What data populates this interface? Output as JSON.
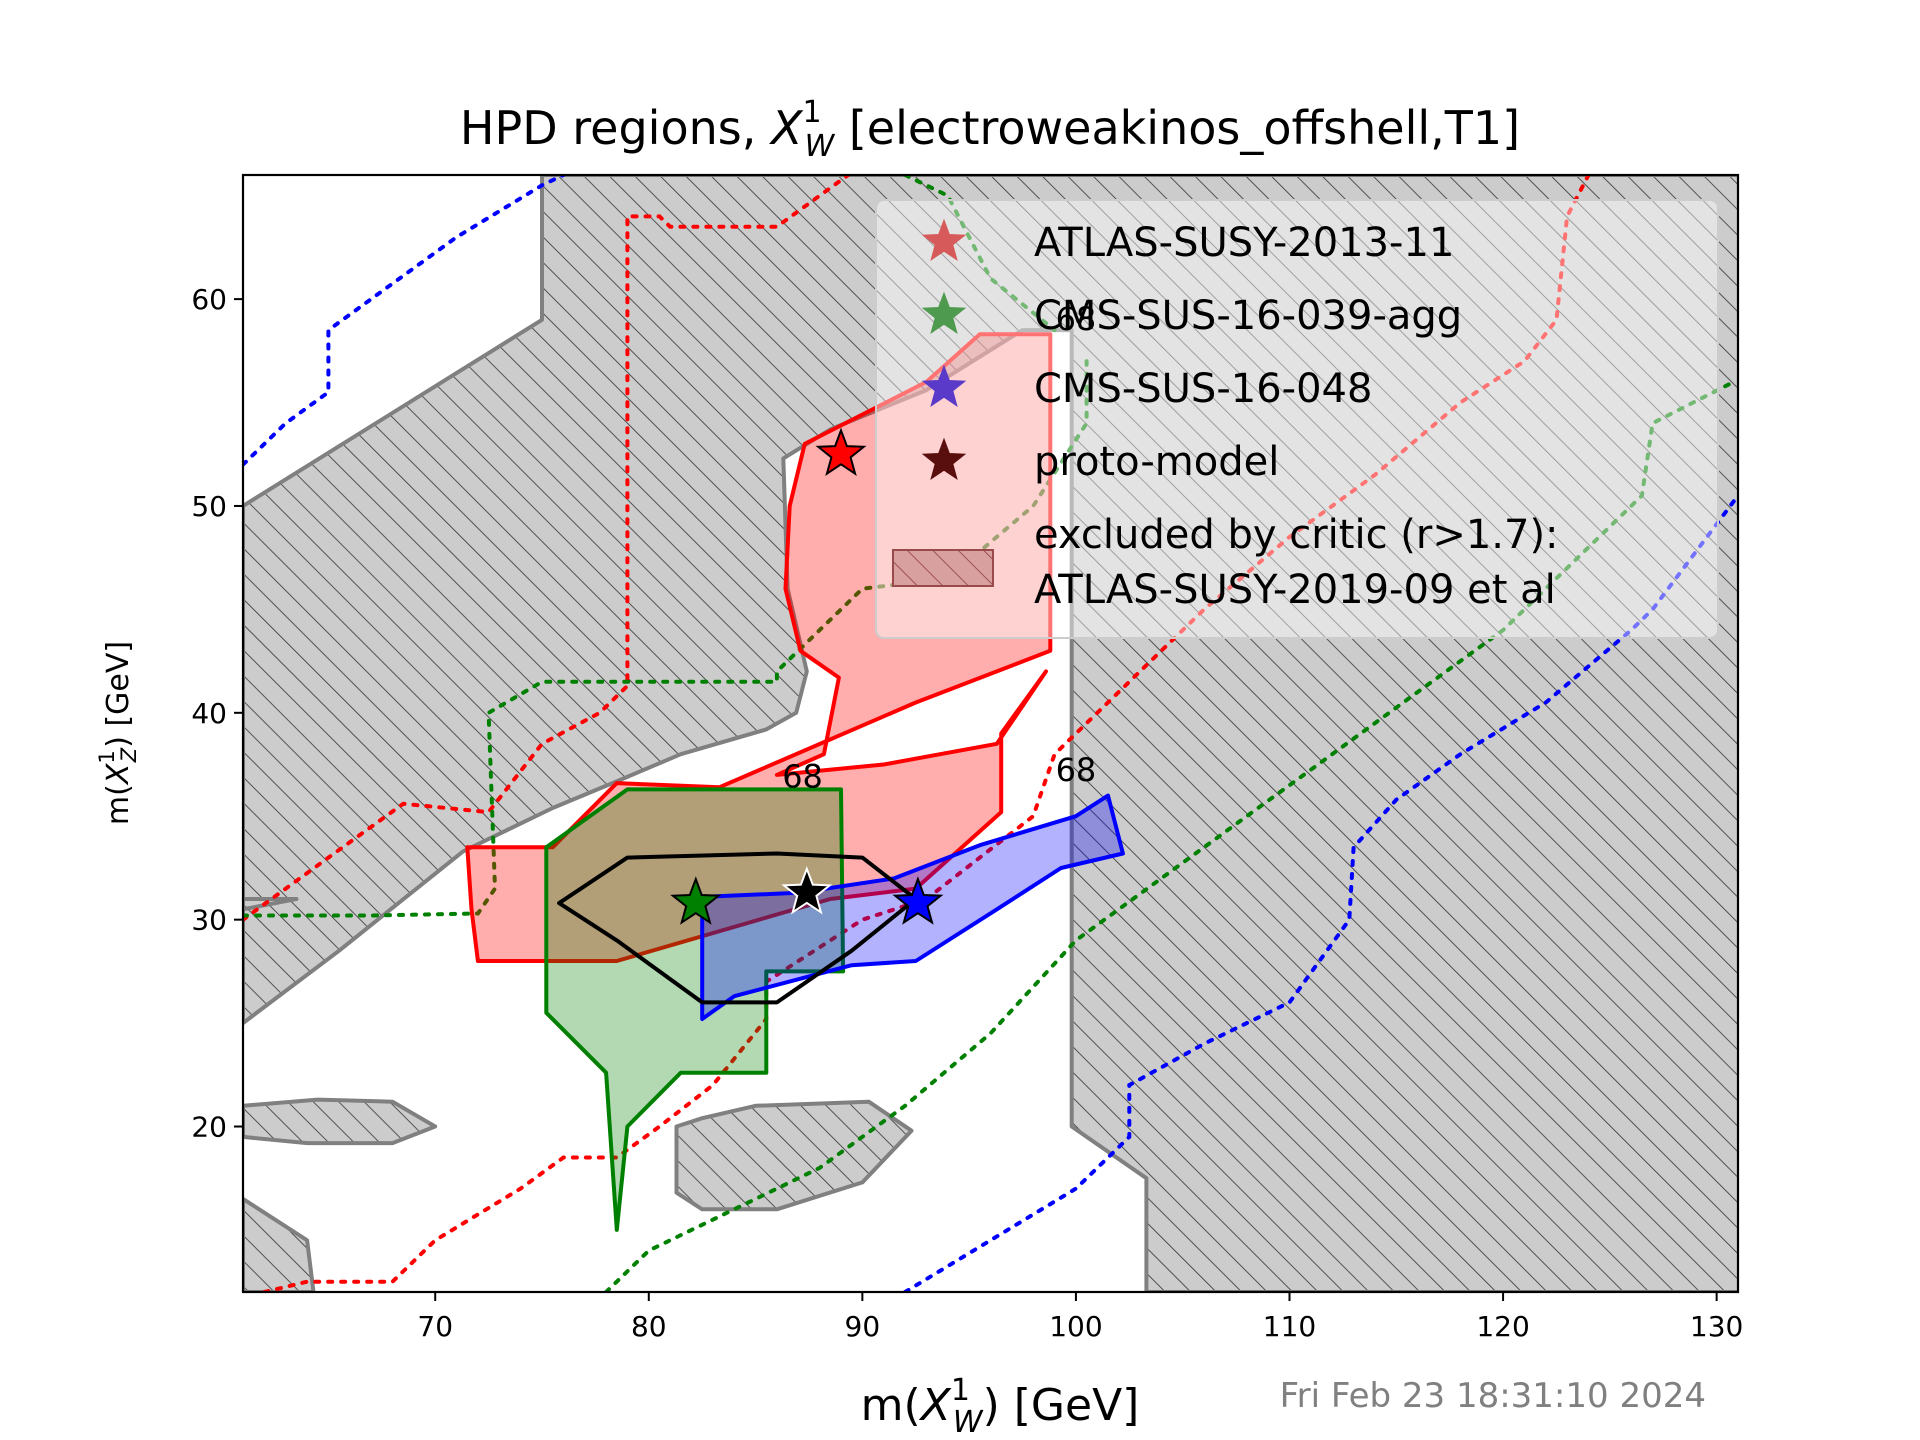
{
  "chart_data": {
    "type": "contour",
    "title_prefix": "HPD regions, ",
    "title_sym": "X",
    "title_sup": "1",
    "title_sub": "W",
    "title_suffix": " [electroweakinos_offshell,T1]",
    "xlabel_prefix": "m(",
    "xlabel_sym": "X",
    "xlabel_sup": "1",
    "xlabel_sub": "W",
    "xlabel_suffix": ") [GeV]",
    "ylabel_prefix": "m(",
    "ylabel_sym": "X",
    "ylabel_sup": "1",
    "ylabel_sub": "Z",
    "ylabel_suffix": ") [GeV]",
    "xlim": [
      61,
      131
    ],
    "ylim": [
      12,
      66
    ],
    "xticks": [
      70,
      80,
      90,
      100,
      110,
      120,
      130
    ],
    "yticks": [
      20,
      30,
      40,
      50,
      60
    ],
    "legend_position": "upper right",
    "legend": [
      {
        "label": "ATLAS-SUSY-2013-11",
        "color": "#ff0000",
        "marker": "star"
      },
      {
        "label": "CMS-SUS-16-039-agg",
        "color": "#008000",
        "marker": "star"
      },
      {
        "label": "CMS-SUS-16-048",
        "color": "#0000ff",
        "marker": "star"
      },
      {
        "label": "proto-model",
        "color": "#000000",
        "marker": "star"
      },
      {
        "label": "excluded by critic (r>1.7):",
        "label2": "ATLAS-SUSY-2019-09 et al",
        "color": "#bbbbbb",
        "marker": "hatch"
      }
    ],
    "contour_labels": [
      {
        "text": "68",
        "color": "#008000",
        "x": 87.2,
        "y": 36.4
      },
      {
        "text": "68",
        "color": "#0000ff",
        "x": 100.0,
        "y": 36.7
      },
      {
        "text": "68",
        "color": "#ff0000",
        "x": 100.0,
        "y": 58.5
      }
    ],
    "best_fit": [
      {
        "series": "ATLAS-SUSY-2013-11",
        "color": "#ff0000",
        "x": 89.0,
        "y": 52.5
      },
      {
        "series": "CMS-SUS-16-039-agg",
        "color": "#008000",
        "x": 82.2,
        "y": 30.8
      },
      {
        "series": "CMS-SUS-16-048",
        "color": "#0000ff",
        "x": 92.6,
        "y": 30.8
      },
      {
        "series": "proto-model",
        "color": "#000000",
        "x": 87.4,
        "y": 31.3
      }
    ],
    "excluded_regions": [
      [
        [
          61,
          50
        ],
        [
          75,
          59
        ],
        [
          75,
          62.5
        ],
        [
          75,
          66
        ],
        [
          133,
          66
        ],
        [
          133,
          12
        ],
        [
          103.3,
          12
        ],
        [
          103.3,
          17.5
        ],
        [
          99.8,
          20
        ],
        [
          99.8,
          58.5
        ],
        [
          97.5,
          58.5
        ],
        [
          93,
          55.6
        ],
        [
          88.5,
          53.7
        ],
        [
          86.3,
          52.3
        ],
        [
          86.5,
          46
        ],
        [
          87.4,
          42
        ],
        [
          86.9,
          40
        ],
        [
          85.5,
          39.2
        ],
        [
          81.5,
          38
        ],
        [
          78.3,
          36.6
        ],
        [
          75.5,
          35.4
        ],
        [
          71.3,
          33.3
        ],
        [
          65.5,
          28.5
        ],
        [
          61,
          25
        ]
      ],
      [
        [
          61,
          30.5
        ],
        [
          63.5,
          31
        ],
        [
          61,
          31
        ]
      ],
      [
        [
          61,
          19.5
        ],
        [
          61,
          21
        ],
        [
          64.5,
          21.3
        ],
        [
          68,
          21.2
        ],
        [
          70,
          20
        ],
        [
          68,
          19.2
        ],
        [
          64,
          19.2
        ]
      ],
      [
        [
          81.3,
          20
        ],
        [
          81.3,
          16.8
        ],
        [
          82.5,
          16
        ],
        [
          86,
          16
        ],
        [
          90,
          17.3
        ],
        [
          92.3,
          19.8
        ],
        [
          90.3,
          21.2
        ],
        [
          85,
          21
        ],
        [
          82.5,
          20.4
        ]
      ],
      [
        [
          61,
          16.5
        ],
        [
          64,
          14.5
        ],
        [
          64.3,
          12
        ],
        [
          61,
          12
        ]
      ]
    ],
    "hpd_regions": [
      {
        "name": "ATLAS-SUSY-2013-11",
        "color": "#ff0000",
        "fill": "rgba(255,0,0,0.32)",
        "polygon": [
          [
            71.5,
            33.5
          ],
          [
            75.5,
            33.5
          ],
          [
            78.5,
            36.6
          ],
          [
            83.3,
            36.4
          ],
          [
            92.5,
            40.5
          ],
          [
            98.8,
            43
          ],
          [
            98.8,
            58.3
          ],
          [
            95.5,
            58.3
          ],
          [
            93,
            56
          ],
          [
            87.3,
            53
          ],
          [
            86.6,
            50
          ],
          [
            86.4,
            46
          ],
          [
            87.1,
            43
          ],
          [
            88.9,
            41.7
          ],
          [
            88.2,
            38
          ],
          [
            86,
            37
          ],
          [
            91,
            37.5
          ],
          [
            96.3,
            38.5
          ],
          [
            98.6,
            42
          ],
          [
            96.5,
            39
          ],
          [
            96.5,
            35.2
          ],
          [
            92.5,
            31.5
          ],
          [
            88.5,
            31
          ],
          [
            78.5,
            28
          ],
          [
            72,
            28
          ],
          [
            71.7,
            30.5
          ]
        ]
      },
      {
        "name": "CMS-SUS-16-039-agg",
        "color": "#008000",
        "fill": "rgba(0,128,0,0.30)",
        "polygon": [
          [
            75.2,
            25.5
          ],
          [
            78,
            22.6
          ],
          [
            78.5,
            15
          ],
          [
            79,
            20
          ],
          [
            81.5,
            22.6
          ],
          [
            85.5,
            22.6
          ],
          [
            85.5,
            27.5
          ],
          [
            89.1,
            27.5
          ],
          [
            89,
            36.3
          ],
          [
            84.5,
            36.3
          ],
          [
            79,
            36.3
          ],
          [
            75.2,
            33.5
          ]
        ]
      },
      {
        "name": "CMS-SUS-16-048",
        "color": "#0000ff",
        "fill": "rgba(0,0,255,0.30)",
        "polygon": [
          [
            82.5,
            25.2
          ],
          [
            82.5,
            31.1
          ],
          [
            87,
            31.3
          ],
          [
            91.5,
            32
          ],
          [
            95.5,
            33.6
          ],
          [
            100,
            35
          ],
          [
            101.5,
            36
          ],
          [
            102.2,
            33.2
          ],
          [
            99.3,
            32.5
          ],
          [
            96.3,
            30.5
          ],
          [
            92.5,
            28
          ],
          [
            89.5,
            27.8
          ],
          [
            84,
            26.3
          ]
        ]
      },
      {
        "name": "proto-model",
        "color": "#000000",
        "fill": "none",
        "polygon": [
          [
            75.8,
            30.8
          ],
          [
            79,
            33
          ],
          [
            86,
            33.2
          ],
          [
            90,
            33
          ],
          [
            92.5,
            31
          ],
          [
            89.5,
            28.5
          ],
          [
            86,
            26
          ],
          [
            82.5,
            26
          ],
          [
            78.5,
            29
          ]
        ]
      }
    ],
    "dotted_curves": [
      {
        "name": "ATLAS-SUSY-2013-11",
        "color": "#ff0000",
        "points": [
          [
            62,
            12
          ],
          [
            64,
            12.5
          ],
          [
            68,
            12.5
          ],
          [
            70,
            14.5
          ],
          [
            74,
            17
          ],
          [
            76,
            18.5
          ],
          [
            78.5,
            18.5
          ],
          [
            80.5,
            20
          ],
          [
            83,
            22
          ],
          [
            85.5,
            25.2
          ],
          [
            85.5,
            27
          ],
          [
            90,
            30
          ],
          [
            93,
            31
          ],
          [
            98,
            35
          ],
          [
            99,
            38
          ],
          [
            101,
            40
          ],
          [
            103,
            42
          ],
          [
            106,
            45
          ],
          [
            110,
            48.5
          ],
          [
            114,
            51.5
          ],
          [
            118,
            55
          ],
          [
            121,
            57
          ],
          [
            122.5,
            59
          ],
          [
            123,
            64
          ],
          [
            124,
            66
          ]
        ]
      },
      {
        "name": "ATLAS-SUSY-2013-11 upper",
        "color": "#ff0000",
        "points": [
          [
            61,
            30
          ],
          [
            65,
            33
          ],
          [
            68.5,
            35.6
          ],
          [
            72.5,
            35.2
          ],
          [
            75,
            38.5
          ],
          [
            77.7,
            40
          ],
          [
            79,
            41.3
          ],
          [
            79,
            64
          ],
          [
            80.5,
            64
          ],
          [
            81,
            63.5
          ],
          [
            86,
            63.5
          ],
          [
            90,
            66.5
          ]
        ]
      },
      {
        "name": "CMS-SUS-16-039-agg",
        "color": "#008000",
        "points": [
          [
            61,
            30.2
          ],
          [
            67,
            30.2
          ],
          [
            72,
            30.3
          ],
          [
            72.8,
            31.5
          ],
          [
            72.5,
            40
          ],
          [
            75,
            41.5
          ],
          [
            86,
            41.5
          ],
          [
            86,
            42
          ],
          [
            88,
            44
          ],
          [
            90,
            46
          ],
          [
            94,
            46.5
          ],
          [
            98,
            50
          ],
          [
            100.5,
            54
          ],
          [
            100.5,
            57
          ]
        ]
      },
      {
        "name": "CMS-SUS-16-039-agg upper",
        "color": "#008000",
        "points": [
          [
            92,
            66
          ],
          [
            94,
            65
          ],
          [
            96,
            61
          ],
          [
            99,
            58.5
          ]
        ]
      },
      {
        "name": "CMS-SUS-16-039-agg lower",
        "color": "#008000",
        "points": [
          [
            78,
            12
          ],
          [
            80,
            14
          ],
          [
            84,
            16
          ],
          [
            88,
            18
          ],
          [
            92,
            21
          ],
          [
            96,
            24.5
          ],
          [
            100,
            29
          ],
          [
            104,
            32
          ],
          [
            108,
            35
          ],
          [
            112,
            38
          ],
          [
            116,
            41
          ],
          [
            120,
            44
          ],
          [
            124,
            48
          ],
          [
            126.5,
            50.5
          ],
          [
            127,
            54
          ],
          [
            130.8,
            56
          ]
        ]
      },
      {
        "name": "CMS-SUS-16-048",
        "color": "#0000ff",
        "points": [
          [
            61,
            52
          ],
          [
            63,
            54
          ],
          [
            65,
            55.5
          ],
          [
            65,
            58.5
          ],
          [
            67,
            60
          ],
          [
            69,
            61.5
          ],
          [
            71,
            63
          ],
          [
            75,
            65.5
          ],
          [
            76,
            66
          ]
        ]
      },
      {
        "name": "CMS-SUS-16-048 lower",
        "color": "#0000ff",
        "points": [
          [
            92,
            12
          ],
          [
            96,
            14.5
          ],
          [
            100,
            17
          ],
          [
            102.5,
            19.5
          ],
          [
            102.5,
            22
          ],
          [
            106,
            24
          ],
          [
            110,
            26
          ],
          [
            112.8,
            30
          ],
          [
            113,
            33.5
          ],
          [
            115,
            35.8
          ],
          [
            118,
            38
          ],
          [
            122,
            40.5
          ],
          [
            126,
            44
          ],
          [
            127,
            45
          ],
          [
            131,
            50.5
          ]
        ]
      }
    ]
  },
  "timestamp": "Fri Feb 23 18:31:10 2024"
}
